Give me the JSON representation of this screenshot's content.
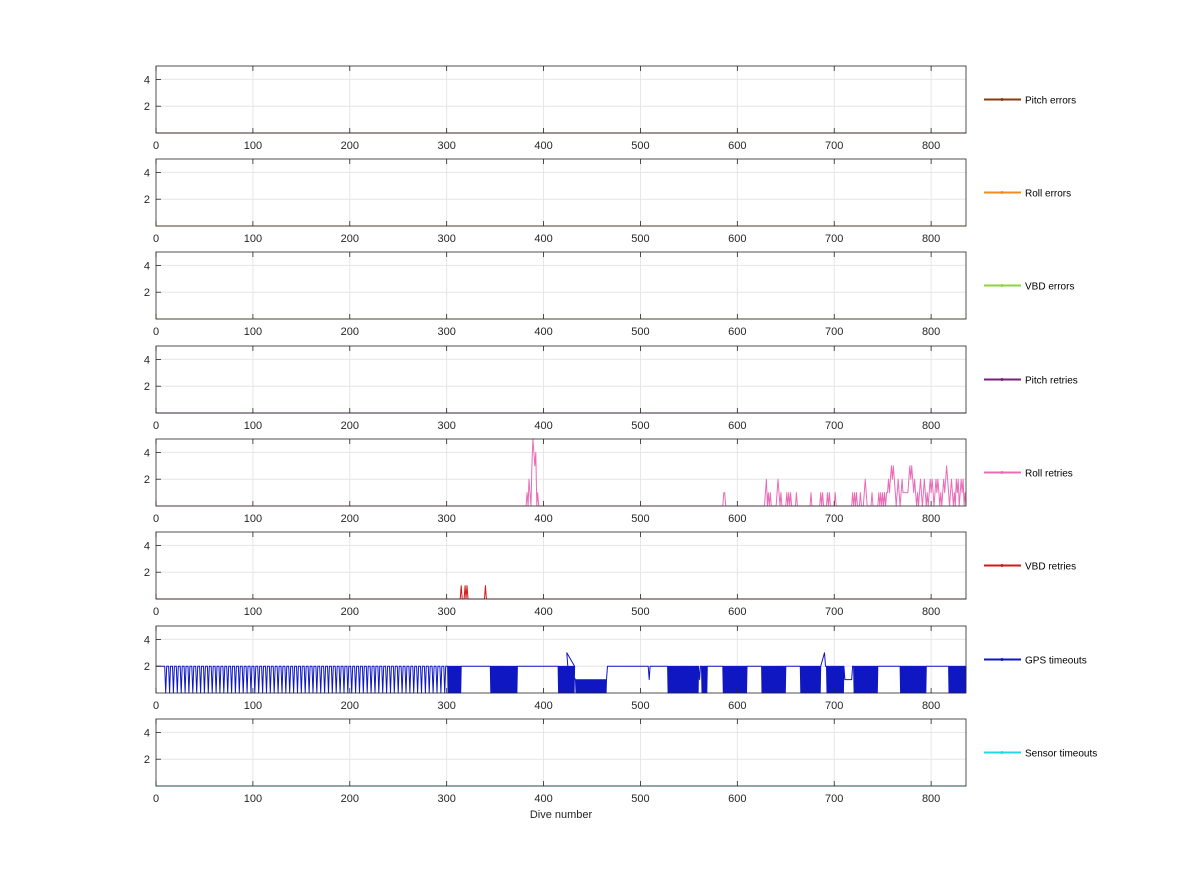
{
  "chart_data": {
    "type": "line",
    "xlabel": "Dive number",
    "xlim": [
      0,
      836
    ],
    "ylim": [
      0,
      5
    ],
    "xticks": [
      0,
      100,
      200,
      300,
      400,
      500,
      600,
      700,
      800
    ],
    "yticks": [
      2,
      4
    ],
    "grid": true,
    "legend_placement": "right",
    "x_tick_labels": [
      "0",
      "100",
      "200",
      "300",
      "400",
      "500",
      "600",
      "700",
      "800"
    ],
    "y_tick_labels": [
      "2",
      "4"
    ],
    "series": [
      {
        "name": "Pitch errors",
        "color": "#8B3A0E",
        "segments": [
          [
            [
              0,
              0
            ],
            [
              836,
              0
            ]
          ]
        ]
      },
      {
        "name": "Roll errors",
        "color": "#F08C1E",
        "segments": [
          [
            [
              0,
              0
            ],
            [
              836,
              0
            ]
          ]
        ]
      },
      {
        "name": "VBD errors",
        "color": "#8DD63A",
        "segments": [
          [
            [
              0,
              0
            ],
            [
              836,
              0
            ]
          ]
        ]
      },
      {
        "name": "Pitch retries",
        "color": "#7A1F7A",
        "segments": [
          [
            [
              0,
              0
            ],
            [
              836,
              0
            ]
          ]
        ]
      },
      {
        "name": "Roll retries",
        "color": "#E86DB9",
        "segments": [
          [
            [
              0,
              0
            ],
            [
              382,
              0
            ],
            [
              383,
              1
            ],
            [
              384,
              0
            ],
            [
              385,
              2
            ],
            [
              386,
              1
            ],
            [
              387,
              0
            ],
            [
              388,
              3
            ],
            [
              389,
              5
            ],
            [
              390,
              4
            ],
            [
              391,
              3
            ],
            [
              392,
              4
            ],
            [
              393,
              0
            ],
            [
              394,
              1
            ],
            [
              395,
              0
            ],
            [
              396,
              0
            ],
            [
              585,
              0
            ],
            [
              586,
              1
            ],
            [
              587,
              1
            ],
            [
              588,
              0
            ],
            [
              628,
              0
            ],
            [
              629,
              1
            ],
            [
              630,
              2
            ],
            [
              631,
              0
            ],
            [
              632,
              1
            ],
            [
              633,
              0
            ],
            [
              634,
              1
            ],
            [
              635,
              0
            ],
            [
              640,
              0
            ],
            [
              641,
              1
            ],
            [
              642,
              2
            ],
            [
              643,
              1
            ],
            [
              644,
              0
            ],
            [
              645,
              1
            ],
            [
              646,
              0
            ],
            [
              650,
              0
            ],
            [
              651,
              1
            ],
            [
              652,
              0
            ],
            [
              653,
              1
            ],
            [
              654,
              0
            ],
            [
              655,
              1
            ],
            [
              656,
              0
            ],
            [
              660,
              0
            ],
            [
              661,
              1
            ],
            [
              662,
              0
            ],
            [
              675,
              0
            ],
            [
              676,
              1
            ],
            [
              677,
              0
            ],
            [
              685,
              0
            ],
            [
              686,
              1
            ],
            [
              687,
              0
            ],
            [
              688,
              1
            ],
            [
              689,
              0
            ],
            [
              692,
              0
            ],
            [
              693,
              1
            ],
            [
              694,
              0
            ],
            [
              695,
              1
            ],
            [
              696,
              0
            ],
            [
              700,
              0
            ],
            [
              701,
              1
            ],
            [
              702,
              0
            ],
            [
              718,
              0
            ],
            [
              719,
              1
            ],
            [
              720,
              0
            ],
            [
              721,
              1
            ],
            [
              722,
              0
            ],
            [
              723,
              1
            ],
            [
              724,
              0
            ],
            [
              726,
              0
            ],
            [
              727,
              1
            ],
            [
              728,
              0
            ],
            [
              730,
              0
            ],
            [
              731,
              1
            ],
            [
              732,
              2
            ],
            [
              733,
              1
            ],
            [
              734,
              0
            ],
            [
              738,
              0
            ],
            [
              739,
              1
            ],
            [
              740,
              0
            ],
            [
              745,
              0
            ],
            [
              746,
              1
            ],
            [
              747,
              0
            ],
            [
              748,
              1
            ],
            [
              749,
              0
            ],
            [
              750,
              1
            ],
            [
              751,
              0
            ],
            [
              752,
              1
            ],
            [
              753,
              0
            ],
            [
              754,
              1
            ],
            [
              755,
              1
            ],
            [
              756,
              2
            ],
            [
              757,
              1
            ],
            [
              758,
              2
            ],
            [
              759,
              3
            ],
            [
              760,
              2
            ],
            [
              761,
              3
            ],
            [
              762,
              2
            ],
            [
              763,
              1
            ],
            [
              764,
              0
            ],
            [
              765,
              1
            ],
            [
              766,
              2
            ],
            [
              767,
              1
            ],
            [
              768,
              0
            ],
            [
              769,
              1
            ],
            [
              770,
              2
            ],
            [
              771,
              1
            ],
            [
              772,
              1
            ],
            [
              773,
              1
            ],
            [
              774,
              1
            ],
            [
              775,
              1
            ],
            [
              776,
              1
            ],
            [
              777,
              2
            ],
            [
              778,
              3
            ],
            [
              779,
              2
            ],
            [
              780,
              3
            ],
            [
              781,
              2
            ],
            [
              782,
              1
            ],
            [
              783,
              2
            ],
            [
              784,
              1
            ],
            [
              785,
              0
            ],
            [
              786,
              1
            ],
            [
              787,
              0
            ],
            [
              788,
              1
            ],
            [
              789,
              2
            ],
            [
              790,
              1
            ],
            [
              791,
              0
            ],
            [
              792,
              1
            ],
            [
              793,
              2
            ],
            [
              794,
              1
            ],
            [
              795,
              0
            ],
            [
              796,
              1
            ],
            [
              797,
              0
            ],
            [
              798,
              1
            ],
            [
              799,
              2
            ],
            [
              800,
              1
            ],
            [
              801,
              2
            ],
            [
              802,
              1
            ],
            [
              803,
              0
            ],
            [
              804,
              1
            ],
            [
              805,
              2
            ],
            [
              806,
              1
            ],
            [
              807,
              2
            ],
            [
              808,
              1
            ],
            [
              809,
              0
            ],
            [
              810,
              1
            ],
            [
              811,
              0
            ],
            [
              812,
              1
            ],
            [
              813,
              2
            ],
            [
              814,
              1
            ],
            [
              815,
              2
            ],
            [
              816,
              3
            ],
            [
              817,
              2
            ],
            [
              818,
              1
            ],
            [
              819,
              0
            ],
            [
              820,
              1
            ],
            [
              821,
              2
            ],
            [
              822,
              1
            ],
            [
              823,
              0
            ],
            [
              824,
              1
            ],
            [
              825,
              0
            ],
            [
              826,
              2
            ],
            [
              827,
              1
            ],
            [
              828,
              2
            ],
            [
              829,
              0
            ],
            [
              830,
              1
            ],
            [
              831,
              2
            ],
            [
              832,
              1
            ],
            [
              833,
              2
            ],
            [
              834,
              0
            ],
            [
              835,
              1
            ],
            [
              836,
              0
            ]
          ]
        ]
      },
      {
        "name": "VBD retries",
        "color": "#D11A1A",
        "segments": [
          [
            [
              0,
              0
            ],
            [
              314,
              0
            ],
            [
              315,
              1
            ],
            [
              316,
              0
            ],
            [
              318,
              0
            ],
            [
              319,
              1
            ],
            [
              320,
              0
            ],
            [
              321,
              1
            ],
            [
              322,
              0
            ],
            [
              339,
              0
            ],
            [
              340,
              1
            ],
            [
              341,
              0
            ],
            [
              836,
              0
            ]
          ]
        ]
      },
      {
        "name": "GPS timeouts",
        "color": "#0E17C2",
        "segments": []
      },
      {
        "name": "Sensor timeouts",
        "color": "#1FD9E8",
        "segments": [
          [
            [
              0,
              0
            ],
            [
              836,
              0
            ]
          ]
        ]
      }
    ]
  }
}
